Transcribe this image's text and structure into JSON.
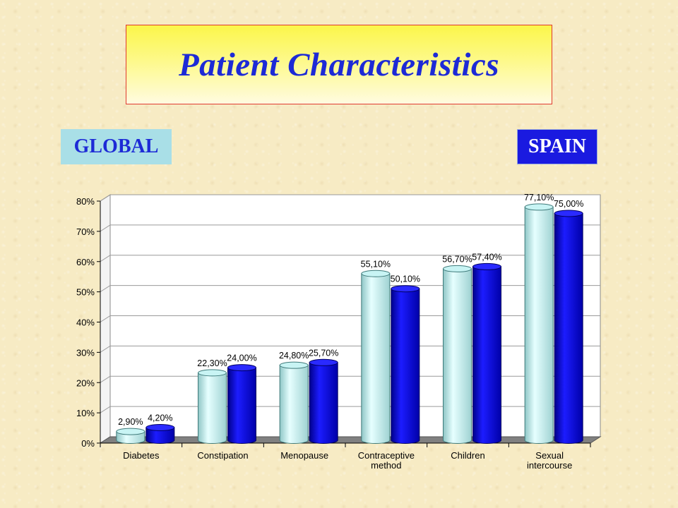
{
  "title": "Patient Characteristics",
  "legend": {
    "global_label": "GLOBAL",
    "spain_label": "SPAIN"
  },
  "colors": {
    "global_bar": "#c8f4f4",
    "spain_bar": "#0a0ad6",
    "title_text": "#1d2ad6",
    "title_border": "#e03a2f",
    "global_tag_bg": "#a9dfe7",
    "spain_tag_bg": "#1a1ae0"
  },
  "chart_data": {
    "type": "bar",
    "style": "3d-cylinder",
    "categories": [
      [
        "Diabetes"
      ],
      [
        "Constipation"
      ],
      [
        "Menopause"
      ],
      [
        "Contraceptive",
        "method"
      ],
      [
        "Children"
      ],
      [
        "Sexual",
        "intercourse"
      ]
    ],
    "series": [
      {
        "name": "GLOBAL",
        "values": [
          2.9,
          22.3,
          24.8,
          55.1,
          56.7,
          77.1
        ],
        "labels": [
          "2,90%",
          "22,30%",
          "24,80%",
          "55,10%",
          "56,70%",
          "77,10%"
        ]
      },
      {
        "name": "SPAIN",
        "values": [
          4.2,
          24.0,
          25.7,
          50.1,
          57.4,
          75.0
        ],
        "labels": [
          "4,20%",
          "24,00%",
          "25,70%",
          "50,10%",
          "57,40%",
          "75,00%"
        ]
      }
    ],
    "yticks": [
      "0%",
      "10%",
      "20%",
      "30%",
      "40%",
      "50%",
      "60%",
      "70%",
      "80%"
    ],
    "ylim": [
      0,
      80
    ],
    "grid": true,
    "legend_placement": "top"
  }
}
